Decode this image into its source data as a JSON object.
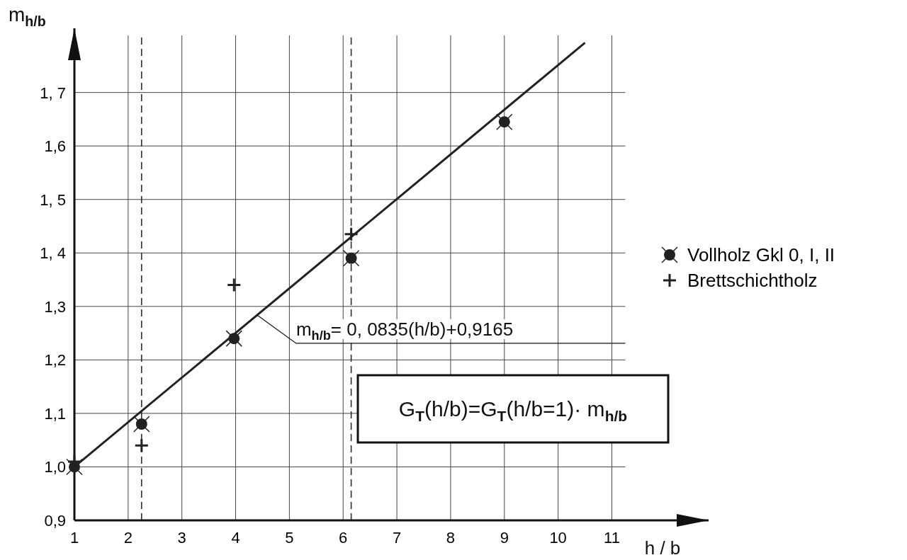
{
  "chart_data": {
    "type": "scatter",
    "xlabel": "h / b",
    "ylabel": "m$_{h/b}$",
    "xlim": [
      1,
      12.8
    ],
    "ylim": [
      0.9,
      1.82
    ],
    "xticks": [
      1,
      2,
      3,
      4,
      5,
      6,
      7,
      8,
      9,
      10,
      11
    ],
    "yticks": [
      {
        "value": 0.9,
        "label": "0,9"
      },
      {
        "value": 1.0,
        "label": "1,0"
      },
      {
        "value": 1.1,
        "label": "1,1"
      },
      {
        "value": 1.2,
        "label": "1,2"
      },
      {
        "value": 1.3,
        "label": "1,3"
      },
      {
        "value": 1.4,
        "label": "1, 4"
      },
      {
        "value": 1.5,
        "label": "1, 5"
      },
      {
        "value": 1.6,
        "label": "1,6"
      },
      {
        "value": 1.7,
        "label": "1, 7"
      }
    ],
    "grid": true,
    "legend": "right",
    "series": [
      {
        "name": "Vollholz Gkl 0, I, II",
        "color": "#222222",
        "marker": "circle",
        "x": [
          1,
          2.25,
          3.97,
          6.15,
          9
        ],
        "values": [
          1.0,
          1.08,
          1.24,
          1.39,
          1.645
        ]
      },
      {
        "name": "Brettschichtholz",
        "color": "#222222",
        "marker": "cross",
        "x": [
          1,
          2.25,
          3.97,
          6.15
        ],
        "values": [
          1.01,
          1.04,
          1.34,
          1.435
        ]
      },
      {
        "type": "line",
        "color": "#222222",
        "x": [
          1,
          10.5
        ],
        "values": [
          1.0,
          1.793
        ]
      }
    ],
    "ref_lines": [
      {
        "axis": "x",
        "value": 2.25,
        "line_style": "dashed",
        "color": "#222222"
      },
      {
        "axis": "x",
        "value": 6.15,
        "line_style": "dashed",
        "color": "#222222"
      }
    ],
    "annotations": [
      {
        "text": "m$_{h/b}$= 0, 0835(h/b)+0,9165",
        "x": 4.4,
        "y": 1.284
      },
      "G$_{T}$(h/b)=G$_{T}$(h/b=1)· m$_{h/b}$"
    ]
  }
}
